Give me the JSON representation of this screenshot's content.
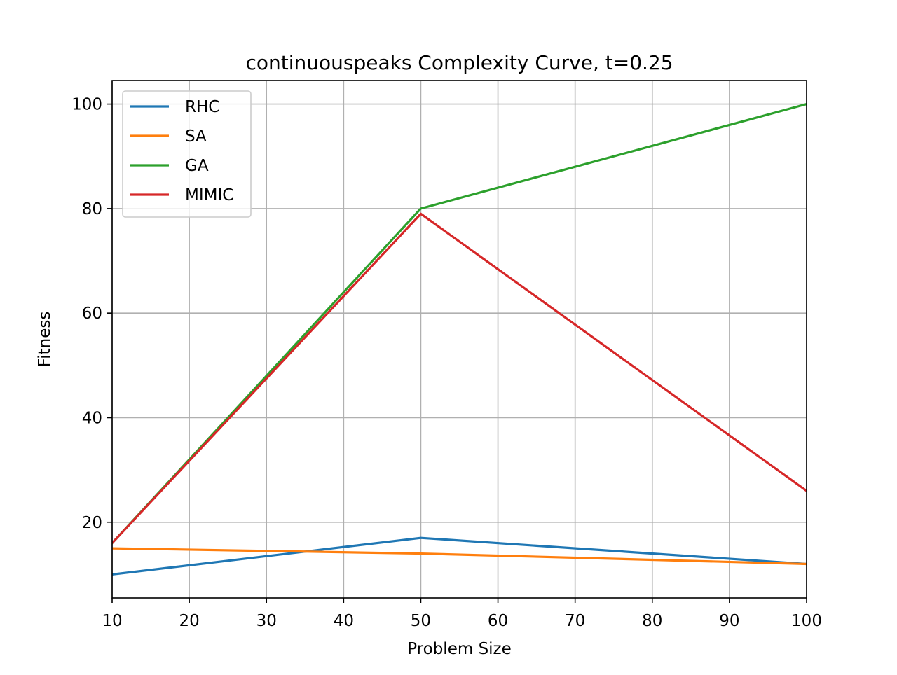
{
  "chart_data": {
    "type": "line",
    "title": "continuouspeaks Complexity Curve, t=0.25",
    "xlabel": "Problem Size",
    "ylabel": "Fitness",
    "x": [
      10,
      50,
      100
    ],
    "xlim": [
      10,
      100
    ],
    "ylim": [
      5.5,
      104.5
    ],
    "xticks": [
      10,
      20,
      30,
      40,
      50,
      60,
      70,
      80,
      90,
      100
    ],
    "yticks": [
      20,
      40,
      60,
      80,
      100
    ],
    "grid": true,
    "legend_position": "upper left",
    "series": [
      {
        "name": "RHC",
        "color": "#1f77b4",
        "values": [
          10,
          17,
          12
        ]
      },
      {
        "name": "SA",
        "color": "#ff7f0e",
        "values": [
          15,
          14,
          12
        ]
      },
      {
        "name": "GA",
        "color": "#2ca02c",
        "values": [
          16,
          80,
          100
        ]
      },
      {
        "name": "MIMIC",
        "color": "#d62728",
        "values": [
          16,
          79,
          26
        ]
      }
    ]
  }
}
